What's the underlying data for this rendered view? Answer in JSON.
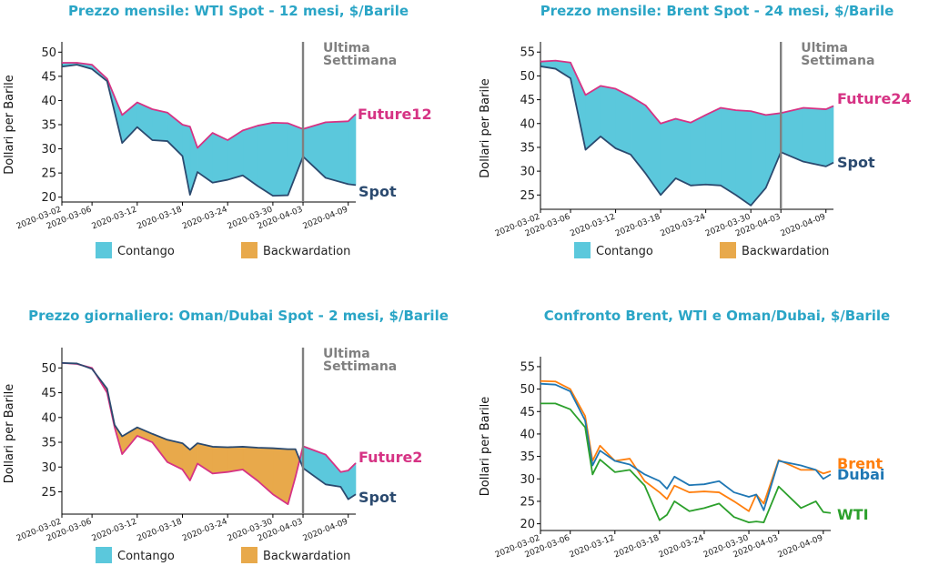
{
  "colors": {
    "contango": "#5bc8dc",
    "backwardation": "#e8a94b",
    "spot": "#2b4a6f",
    "future": "#d63384",
    "marker": "#808080",
    "title": "#2aa5c6",
    "brent": "#ff7f0e",
    "dubai": "#1f77b4",
    "wti": "#2ca02c"
  },
  "common": {
    "ylabel": "Dollari per Barile",
    "marker_label": [
      "Ultima",
      "Settimana"
    ],
    "legend": {
      "contango": "Contango",
      "backwardation": "Backwardation"
    },
    "x_ticks": [
      "2020-03-02",
      "2020-03-06",
      "2020-03-12",
      "2020-03-18",
      "2020-03-24",
      "2020-03-30",
      "2020-04-03",
      "2020-04-09"
    ]
  },
  "chart_data": [
    {
      "type": "area",
      "title": "Prezzo mensile: WTI Spot - 12 mesi, $/Barile",
      "ylim": [
        19,
        51
      ],
      "y_ticks": [
        20,
        25,
        30,
        35,
        40,
        45,
        50
      ],
      "marker_date": "2020-04-03",
      "series": [
        {
          "name": "Future12",
          "role": "future",
          "x": [
            "2020-03-02",
            "2020-03-04",
            "2020-03-06",
            "2020-03-08",
            "2020-03-10",
            "2020-03-12",
            "2020-03-14",
            "2020-03-16",
            "2020-03-18",
            "2020-03-19",
            "2020-03-20",
            "2020-03-22",
            "2020-03-24",
            "2020-03-26",
            "2020-03-28",
            "2020-03-30",
            "2020-04-01",
            "2020-04-03",
            "2020-04-06",
            "2020-04-09",
            "2020-04-10"
          ],
          "values": [
            47.8,
            47.8,
            47.4,
            44.5,
            37.0,
            39.6,
            38.2,
            37.5,
            35.0,
            34.6,
            30.2,
            33.3,
            31.8,
            33.8,
            34.8,
            35.4,
            35.3,
            34.1,
            35.5,
            35.7,
            37.2
          ]
        },
        {
          "name": "Spot",
          "role": "spot",
          "x": [
            "2020-03-02",
            "2020-03-04",
            "2020-03-06",
            "2020-03-08",
            "2020-03-10",
            "2020-03-12",
            "2020-03-14",
            "2020-03-16",
            "2020-03-18",
            "2020-03-19",
            "2020-03-20",
            "2020-03-22",
            "2020-03-24",
            "2020-03-26",
            "2020-03-28",
            "2020-03-30",
            "2020-04-01",
            "2020-04-03",
            "2020-04-06",
            "2020-04-09",
            "2020-04-10"
          ],
          "values": [
            47.0,
            47.4,
            46.5,
            44.0,
            31.2,
            34.5,
            31.8,
            31.6,
            28.5,
            20.5,
            25.2,
            23.0,
            23.6,
            24.5,
            22.3,
            20.3,
            20.4,
            28.4,
            24.0,
            22.7,
            22.5
          ]
        }
      ]
    },
    {
      "type": "area",
      "title": "Prezzo mensile: Brent Spot - 24 mesi, $/Barile",
      "ylim": [
        22,
        56
      ],
      "y_ticks": [
        25,
        30,
        35,
        40,
        45,
        50,
        55
      ],
      "marker_date": "2020-04-03",
      "series": [
        {
          "name": "Future24",
          "role": "future",
          "x": [
            "2020-03-02",
            "2020-03-04",
            "2020-03-06",
            "2020-03-08",
            "2020-03-10",
            "2020-03-12",
            "2020-03-14",
            "2020-03-16",
            "2020-03-18",
            "2020-03-20",
            "2020-03-22",
            "2020-03-24",
            "2020-03-26",
            "2020-03-28",
            "2020-03-30",
            "2020-04-01",
            "2020-04-03",
            "2020-04-06",
            "2020-04-09",
            "2020-04-10"
          ],
          "values": [
            53.0,
            53.2,
            52.8,
            46.0,
            47.9,
            47.3,
            45.7,
            43.8,
            40.0,
            41.0,
            40.2,
            41.8,
            43.3,
            42.8,
            42.6,
            41.8,
            42.2,
            43.3,
            43.0,
            43.7
          ]
        },
        {
          "name": "Spot",
          "role": "spot",
          "x": [
            "2020-03-02",
            "2020-03-04",
            "2020-03-06",
            "2020-03-08",
            "2020-03-10",
            "2020-03-12",
            "2020-03-14",
            "2020-03-16",
            "2020-03-18",
            "2020-03-20",
            "2020-03-22",
            "2020-03-24",
            "2020-03-26",
            "2020-03-28",
            "2020-03-30",
            "2020-04-01",
            "2020-04-03",
            "2020-04-06",
            "2020-04-09",
            "2020-04-10"
          ],
          "values": [
            52.0,
            51.5,
            49.5,
            34.5,
            37.3,
            34.8,
            33.5,
            29.5,
            25.0,
            28.5,
            27.0,
            27.2,
            27.0,
            25.0,
            22.8,
            26.5,
            34.0,
            32.0,
            31.0,
            31.8
          ]
        }
      ]
    },
    {
      "type": "area",
      "title": "Prezzo giornaliero: Oman/Dubai Spot - 2 mesi, $/Barile",
      "ylim": [
        20.5,
        53
      ],
      "y_ticks": [
        25,
        30,
        35,
        40,
        45,
        50
      ],
      "marker_date": "2020-04-03",
      "series": [
        {
          "name": "Future2",
          "role": "future",
          "x": [
            "2020-03-02",
            "2020-03-04",
            "2020-03-06",
            "2020-03-08",
            "2020-03-09",
            "2020-03-10",
            "2020-03-12",
            "2020-03-14",
            "2020-03-16",
            "2020-03-18",
            "2020-03-19",
            "2020-03-20",
            "2020-03-22",
            "2020-03-24",
            "2020-03-26",
            "2020-03-28",
            "2020-03-30",
            "2020-04-01",
            "2020-04-02",
            "2020-04-03",
            "2020-04-06",
            "2020-04-08",
            "2020-04-09",
            "2020-04-10"
          ],
          "values": [
            51.0,
            50.8,
            50.0,
            45.0,
            38.0,
            32.6,
            36.3,
            35.0,
            31.0,
            29.5,
            27.3,
            30.7,
            28.7,
            29.0,
            29.5,
            27.2,
            24.5,
            22.5,
            28.0,
            34.2,
            32.5,
            29.0,
            29.3,
            30.8
          ]
        },
        {
          "name": "Spot",
          "role": "spot",
          "x": [
            "2020-03-02",
            "2020-03-04",
            "2020-03-06",
            "2020-03-08",
            "2020-03-09",
            "2020-03-10",
            "2020-03-12",
            "2020-03-14",
            "2020-03-16",
            "2020-03-18",
            "2020-03-19",
            "2020-03-20",
            "2020-03-22",
            "2020-03-24",
            "2020-03-26",
            "2020-03-28",
            "2020-03-30",
            "2020-04-01",
            "2020-04-02",
            "2020-04-03",
            "2020-04-06",
            "2020-04-08",
            "2020-04-09",
            "2020-04-10"
          ],
          "values": [
            51.0,
            50.9,
            49.8,
            45.8,
            38.5,
            36.2,
            38.0,
            36.7,
            35.5,
            34.8,
            33.5,
            34.8,
            34.1,
            34.0,
            34.1,
            33.9,
            33.8,
            33.6,
            33.6,
            29.8,
            26.5,
            26.0,
            23.5,
            24.5
          ]
        }
      ]
    },
    {
      "type": "line",
      "title": "Confronto Brent, WTI e Oman/Dubai, $/Barile",
      "ylim": [
        18.5,
        56
      ],
      "y_ticks": [
        20,
        25,
        30,
        35,
        40,
        45,
        50,
        55
      ],
      "series": [
        {
          "name": "Brent",
          "role": "brent",
          "x": [
            "2020-03-02",
            "2020-03-04",
            "2020-03-06",
            "2020-03-08",
            "2020-03-09",
            "2020-03-10",
            "2020-03-12",
            "2020-03-14",
            "2020-03-16",
            "2020-03-18",
            "2020-03-19",
            "2020-03-20",
            "2020-03-22",
            "2020-03-24",
            "2020-03-26",
            "2020-03-28",
            "2020-03-30",
            "2020-03-31",
            "2020-04-01",
            "2020-04-03",
            "2020-04-06",
            "2020-04-08",
            "2020-04-09",
            "2020-04-10"
          ],
          "values": [
            51.8,
            51.7,
            50.0,
            44.0,
            34.0,
            37.4,
            34.0,
            34.5,
            29.5,
            27.0,
            25.5,
            28.5,
            27.0,
            27.2,
            27.0,
            25.0,
            22.8,
            26.5,
            24.5,
            34.2,
            32.0,
            32.0,
            31.2,
            31.7
          ]
        },
        {
          "name": "Dubai",
          "role": "dubai",
          "x": [
            "2020-03-02",
            "2020-03-04",
            "2020-03-06",
            "2020-03-08",
            "2020-03-09",
            "2020-03-10",
            "2020-03-12",
            "2020-03-14",
            "2020-03-16",
            "2020-03-18",
            "2020-03-19",
            "2020-03-20",
            "2020-03-22",
            "2020-03-24",
            "2020-03-26",
            "2020-03-28",
            "2020-03-30",
            "2020-03-31",
            "2020-04-01",
            "2020-04-03",
            "2020-04-06",
            "2020-04-08",
            "2020-04-09",
            "2020-04-10"
          ],
          "values": [
            51.2,
            51.0,
            49.5,
            43.0,
            33.0,
            36.3,
            34.0,
            33.2,
            31.0,
            29.5,
            27.8,
            30.5,
            28.6,
            28.8,
            29.5,
            27.0,
            26.0,
            26.5,
            23.0,
            34.0,
            33.0,
            32.0,
            30.0,
            31.0
          ]
        },
        {
          "name": "WTI",
          "role": "wti",
          "x": [
            "2020-03-02",
            "2020-03-04",
            "2020-03-06",
            "2020-03-08",
            "2020-03-09",
            "2020-03-10",
            "2020-03-12",
            "2020-03-14",
            "2020-03-16",
            "2020-03-18",
            "2020-03-19",
            "2020-03-20",
            "2020-03-22",
            "2020-03-24",
            "2020-03-26",
            "2020-03-28",
            "2020-03-30",
            "2020-03-31",
            "2020-04-01",
            "2020-04-03",
            "2020-04-06",
            "2020-04-08",
            "2020-04-09",
            "2020-04-10"
          ],
          "values": [
            46.8,
            46.8,
            45.5,
            41.5,
            31.0,
            34.3,
            31.5,
            32.0,
            28.5,
            20.8,
            22.0,
            25.0,
            22.8,
            23.5,
            24.5,
            21.5,
            20.3,
            20.5,
            20.3,
            28.3,
            23.5,
            25.0,
            22.6,
            22.4
          ]
        }
      ]
    }
  ]
}
